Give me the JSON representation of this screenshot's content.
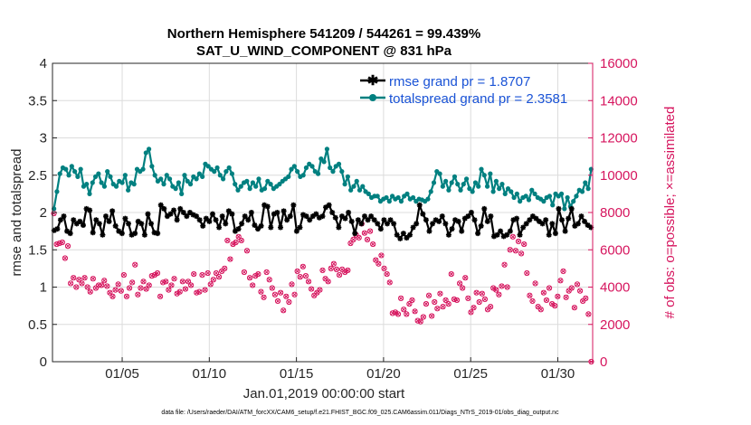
{
  "chart_data": {
    "type": "line",
    "title_line1": "Northern Hemisphere 541209 / 544261 = 99.439%",
    "title_line2": "SAT_U_WIND_COMPONENT @ 831 hPa",
    "xlabel": "Jan.01,2019 00:00:00 start",
    "ylabel_left": "rmse and totalspread",
    "ylabel_right": "# of obs: o=possible; ×=assimilated",
    "footnote": "data file: /Users/raeder/DAI/ATM_forcXX/CAM6_setup/f.e21.FHIST_BGC.f09_025.CAM6assim.011/Diags_NTrS_2019-01/obs_diag_output.nc",
    "xlim": [
      1.0,
      32.0
    ],
    "ylim_left": [
      0,
      4
    ],
    "ylim_right": [
      0,
      16000
    ],
    "x_ticks": [
      5,
      10,
      15,
      20,
      25,
      30
    ],
    "x_tick_labels": [
      "01/05",
      "01/10",
      "01/15",
      "01/20",
      "01/25",
      "01/30"
    ],
    "y_left_ticks": [
      "0",
      "0.5",
      "1",
      "1.5",
      "2",
      "2.5",
      "3",
      "3.5",
      "4"
    ],
    "y_right_ticks": [
      "0",
      "2000",
      "4000",
      "6000",
      "8000",
      "10000",
      "12000",
      "14000",
      "16000"
    ],
    "colors": {
      "rmse": "#000000",
      "totalspread": "#008080",
      "obs": "#d6155e",
      "legend_text": "#1a53d6",
      "axis": "#262626",
      "grid": "#dcdcdc"
    },
    "series": [
      {
        "name": "rmse grand pr = 1.8707",
        "axis": "left",
        "values": [
          1.76,
          1.78,
          1.9,
          1.95,
          1.75,
          1.72,
          1.9,
          1.85,
          1.88,
          1.83,
          2.05,
          2.03,
          1.73,
          1.9,
          1.85,
          1.7,
          1.95,
          1.88,
          2.02,
          1.82,
          1.75,
          1.72,
          1.92,
          1.85,
          1.7,
          1.72,
          1.88,
          1.85,
          1.7,
          1.98,
          1.85,
          1.73,
          1.72,
          2.1,
          2.05,
          1.95,
          1.98,
          2.03,
          1.9,
          2.05,
          2.0,
          1.95,
          2.0,
          1.97,
          1.95,
          1.9,
          1.82,
          1.92,
          1.88,
          1.98,
          1.9,
          1.8,
          1.95,
          1.85,
          2.02,
          1.98,
          1.75,
          1.78,
          1.85,
          1.95,
          1.9,
          2.0,
          1.83,
          1.78,
          1.82,
          2.1,
          2.08,
          1.8,
          1.98,
          2.0,
          1.8,
          2.02,
          1.9,
          1.95,
          2.1,
          1.75,
          1.8,
          1.97,
          1.95,
          1.9,
          1.95,
          1.98,
          1.93,
          1.95,
          2.07,
          2.1,
          2.0,
          1.93,
          1.8,
          1.95,
          1.92,
          2.0,
          1.88,
          1.72,
          1.9,
          1.85,
          1.95,
          1.9,
          1.95,
          1.9,
          1.85,
          1.78,
          1.9,
          1.85,
          1.9,
          1.85,
          1.7,
          1.65,
          1.72,
          1.66,
          1.7,
          1.8,
          1.85,
          2.1,
          1.98,
          1.9,
          1.75,
          1.85,
          1.9,
          1.88,
          1.95,
          1.85,
          1.7,
          1.78,
          1.9,
          1.88,
          1.75,
          1.92,
          1.95,
          2.0,
          1.9,
          1.72,
          1.82,
          2.05,
          1.88,
          1.95,
          1.68,
          1.7,
          1.75,
          1.68,
          1.7,
          1.75,
          1.9,
          1.92,
          1.7,
          1.8,
          1.85,
          1.9,
          1.95,
          1.92,
          1.88,
          1.85,
          1.9,
          1.7,
          1.85,
          1.72,
          2.05,
          1.9,
          1.75,
          1.92,
          2.05,
          1.82,
          1.85,
          1.95,
          1.88,
          1.83,
          1.8
        ]
      },
      {
        "name": "totalspread grand pr = 2.3581",
        "axis": "left",
        "values": [
          2.05,
          2.28,
          2.52,
          2.6,
          2.58,
          2.5,
          2.62,
          2.55,
          2.48,
          2.58,
          2.35,
          2.38,
          2.25,
          2.4,
          2.48,
          2.52,
          2.4,
          2.35,
          2.55,
          2.48,
          2.38,
          2.35,
          2.42,
          2.4,
          2.5,
          2.3,
          2.4,
          2.38,
          2.58,
          2.55,
          2.58,
          2.8,
          2.85,
          2.62,
          2.5,
          2.42,
          2.45,
          2.38,
          2.5,
          2.45,
          2.35,
          2.32,
          2.4,
          2.25,
          2.5,
          2.42,
          2.38,
          2.48,
          2.45,
          2.52,
          2.48,
          2.65,
          2.62,
          2.58,
          2.55,
          2.6,
          2.5,
          2.45,
          2.55,
          2.6,
          2.52,
          2.38,
          2.3,
          2.35,
          2.4,
          2.42,
          2.32,
          2.4,
          2.35,
          2.45,
          2.3,
          2.32,
          2.42,
          2.38,
          2.32,
          2.35,
          2.38,
          2.42,
          2.45,
          2.48,
          2.58,
          2.62,
          2.55,
          2.48,
          2.5,
          2.6,
          2.65,
          2.62,
          2.55,
          2.52,
          2.72,
          2.68,
          2.85,
          2.6,
          2.55,
          2.62,
          2.65,
          2.55,
          2.38,
          2.48,
          2.3,
          2.35,
          2.42,
          2.3,
          2.35,
          2.28,
          2.25,
          2.2,
          2.22,
          2.22,
          2.15,
          2.18,
          2.2,
          2.15,
          2.22,
          2.18,
          2.2,
          2.15,
          2.22,
          2.25,
          2.18,
          2.2,
          2.15,
          2.18,
          2.17,
          2.15,
          2.18,
          2.28,
          2.4,
          2.55,
          2.52,
          2.35,
          2.42,
          2.3,
          2.4,
          2.48,
          2.38,
          2.3,
          2.38,
          2.45,
          2.32,
          2.28,
          2.4,
          2.35,
          2.58,
          2.5,
          2.35,
          2.52,
          2.28,
          2.42,
          2.32,
          2.38,
          2.25,
          2.32,
          2.28,
          2.2,
          2.25,
          2.15,
          2.2,
          2.22,
          2.17,
          2.3,
          2.25,
          2.2,
          2.18,
          2.15,
          2.2,
          2.22,
          2.1,
          2.25,
          2.22,
          2.25,
          2.05,
          2.2,
          2.08,
          2.15,
          2.22,
          2.3,
          2.28,
          2.4,
          2.32,
          2.58
        ]
      },
      {
        "name": "# of obs possible",
        "axis": "right",
        "values": [
          7950,
          6300,
          6350,
          6400,
          5550,
          6200,
          4200,
          4500,
          4000,
          4400,
          4200,
          4500,
          4000,
          3750,
          4450,
          3950,
          4100,
          4100,
          4350,
          4050,
          3700,
          3500,
          3850,
          4150,
          3800,
          4650,
          3500,
          3950,
          4250,
          5200,
          3600,
          3950,
          4300,
          3900,
          4100,
          4600,
          4650,
          4750,
          3500,
          4250,
          4300,
          3850,
          4100,
          4450,
          3650,
          3750,
          4300,
          3900,
          4300,
          4100,
          4700,
          3700,
          3750,
          4650,
          3850,
          4750,
          4150,
          4400,
          4750,
          4550,
          4850,
          5000,
          6500,
          5500,
          6300,
          6400,
          6700,
          6500,
          4800,
          5950,
          4500,
          4100,
          4600,
          4700,
          3750,
          3450,
          4800,
          4400,
          3950,
          3600,
          3250,
          3700,
          2750,
          3500,
          3200,
          4150,
          3600,
          4850,
          4550,
          5100,
          4600,
          4300,
          3900,
          3550,
          3700,
          3850,
          4900,
          4450,
          4300,
          5000,
          5250,
          4950,
          4650,
          4950,
          4800,
          4900,
          6350,
          6550,
          6800,
          6650,
          7400,
          6900,
          6550,
          7000,
          6300,
          5450,
          5250,
          5700,
          5000,
          4700,
          4250,
          2600,
          2650,
          2550,
          3400,
          2800,
          2550,
          3100,
          3300,
          2700,
          2200,
          2150,
          2400,
          3100,
          3550,
          2450,
          3200,
          2850,
          3650,
          2950,
          3300,
          3100,
          4700,
          3350,
          3300,
          4200,
          3950,
          4500,
          3400,
          2650,
          2900,
          3700,
          3200,
          3650,
          3350,
          2800,
          2950,
          3950,
          3850,
          3600,
          4050,
          5200,
          4000,
          6000,
          6700,
          5950,
          6450,
          5800,
          6300,
          4750,
          3550,
          3250,
          4200,
          2950,
          2800,
          3700,
          3300,
          3950,
          3100,
          3000,
          3500,
          4350,
          4850,
          3450,
          3800,
          3950,
          2900,
          4150,
          3800,
          3250,
          3400,
          2550,
          0
        ]
      }
    ]
  }
}
